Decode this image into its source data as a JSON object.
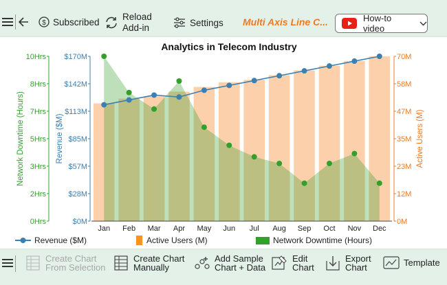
{
  "toolbar": {
    "subscribed_label": "Subscribed",
    "reload_label": "Reload\nAdd-in",
    "settings_label": "Settings",
    "brand_label": "Multi Axis Line C...",
    "howto_label": "How-to video"
  },
  "bottom_toolbar": {
    "create_from_selection": "Create Chart\nFrom Selection",
    "create_manually": "Create Chart\nManually",
    "add_sample": "Add Sample\nChart + Data",
    "edit_chart": "Edit\nChart",
    "export_chart": "Export\nChart",
    "template": "Template"
  },
  "colors": {
    "revenue": "#3c7fb1",
    "users": "#fbc89c",
    "downtime": "#33a02c",
    "accent": "#f07a22",
    "youtube": "#e62117"
  },
  "chart_data": {
    "type": "line",
    "title": "Analytics in Telecom Industry",
    "categories": [
      "Jan",
      "Feb",
      "Mar",
      "Apr",
      "May",
      "Jun",
      "Jul",
      "Aug",
      "Sep",
      "Oct",
      "Nov",
      "Dec"
    ],
    "series": [
      {
        "name": "Revenue ($M)",
        "type": "line",
        "axis": "left-inner",
        "values": [
          120,
          125,
          130,
          128,
          135,
          140,
          145,
          150,
          155,
          160,
          165,
          170
        ]
      },
      {
        "name": "Active Users (M)",
        "type": "bar",
        "axis": "right",
        "values": [
          50,
          52,
          53,
          55,
          57,
          59,
          60,
          62,
          64,
          66,
          68,
          70
        ]
      },
      {
        "name": "Network Downtime (Hours)",
        "type": "area",
        "axis": "left-outer",
        "values": [
          10,
          7.8,
          6.8,
          8.5,
          5.7,
          4.6,
          3.9,
          3.5,
          2.3,
          3.5,
          4.1,
          2.3
        ]
      }
    ],
    "axes": {
      "left_outer": {
        "label": "Network Downtime (Hours)",
        "min": 0,
        "max": 10,
        "ticks": [
          "0Hrs",
          "2Hrs",
          "3Hrs",
          "5Hrs",
          "7Hrs",
          "8Hrs",
          "10Hrs"
        ]
      },
      "left_inner": {
        "label": "Revenue ($M)",
        "min": 0,
        "max": 170,
        "ticks": [
          "$0M",
          "$28M",
          "$57M",
          "$85M",
          "$113M",
          "$142M",
          "$170M"
        ]
      },
      "right": {
        "label": "Active Users (M)",
        "min": 0,
        "max": 70,
        "ticks": [
          "0M",
          "12M",
          "23M",
          "35M",
          "47M",
          "58M",
          "70M"
        ]
      }
    },
    "legend": [
      "Revenue ($M)",
      "Active Users (M)",
      "Network Downtime (Hours)"
    ],
    "legend_position": "bottom",
    "grid": false
  }
}
